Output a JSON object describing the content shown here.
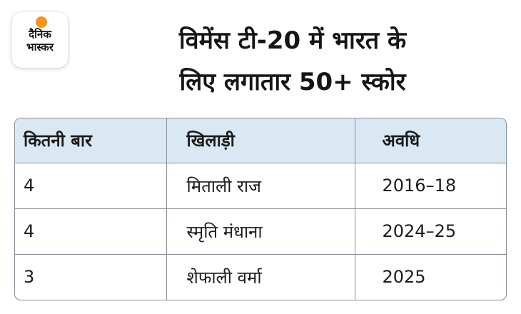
{
  "logo": {
    "line1": "दैनिक",
    "line2": "भास्कर",
    "accent_color": "#f7941d"
  },
  "title": {
    "line1": "विमेंस टी-20 में भारत के",
    "line2": "लिए लगातार 50+ स्कोर"
  },
  "table": {
    "header_color": "#d9e8f3",
    "headers": [
      "कितनी बार",
      "खिलाड़ी",
      "अवधि"
    ],
    "rows": [
      [
        "4",
        "मिताली राज",
        "2016–18"
      ],
      [
        "4",
        "स्मृति मंधाना",
        "2024–25"
      ],
      [
        "3",
        "शेफाली वर्मा",
        "2025"
      ]
    ]
  }
}
